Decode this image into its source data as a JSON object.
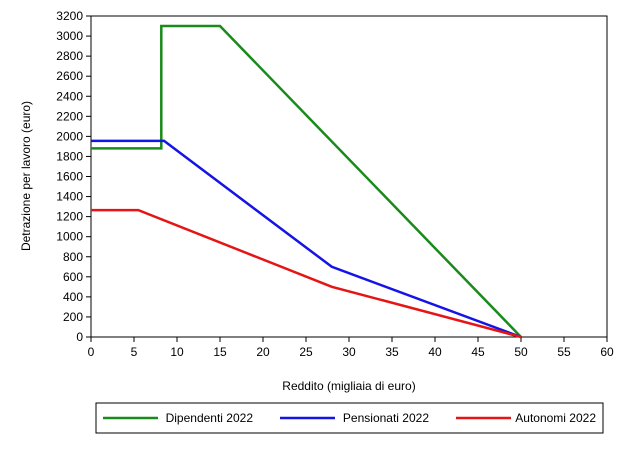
{
  "chart_data": {
    "type": "line",
    "xlabel": "Reddito (migliaia di euro)",
    "ylabel": "Detrazione per lavoro (euro)",
    "xlim": [
      0,
      60
    ],
    "ylim": [
      0,
      3200
    ],
    "x_ticks": [
      0,
      5,
      10,
      15,
      20,
      25,
      30,
      35,
      40,
      45,
      50,
      55,
      60
    ],
    "y_ticks": [
      0,
      200,
      400,
      600,
      800,
      1000,
      1200,
      1400,
      1600,
      1800,
      2000,
      2200,
      2400,
      2600,
      2800,
      3000,
      3200
    ],
    "grid": false,
    "legend_position": "bottom",
    "series": [
      {
        "name": "Dipendenti 2022",
        "color": "#1a8a1a",
        "points": [
          [
            0,
            1880
          ],
          [
            8.17,
            1880
          ],
          [
            8.17,
            3100
          ],
          [
            15,
            3100
          ],
          [
            50,
            0
          ]
        ]
      },
      {
        "name": "Pensionati 2022",
        "color": "#1414e6",
        "points": [
          [
            0,
            1955
          ],
          [
            8.5,
            1955
          ],
          [
            28,
            700
          ],
          [
            50,
            0
          ]
        ]
      },
      {
        "name": "Autonomi 2022",
        "color": "#e61414",
        "points": [
          [
            0,
            1265
          ],
          [
            5.5,
            1265
          ],
          [
            28,
            500
          ],
          [
            50,
            0
          ]
        ]
      }
    ]
  }
}
